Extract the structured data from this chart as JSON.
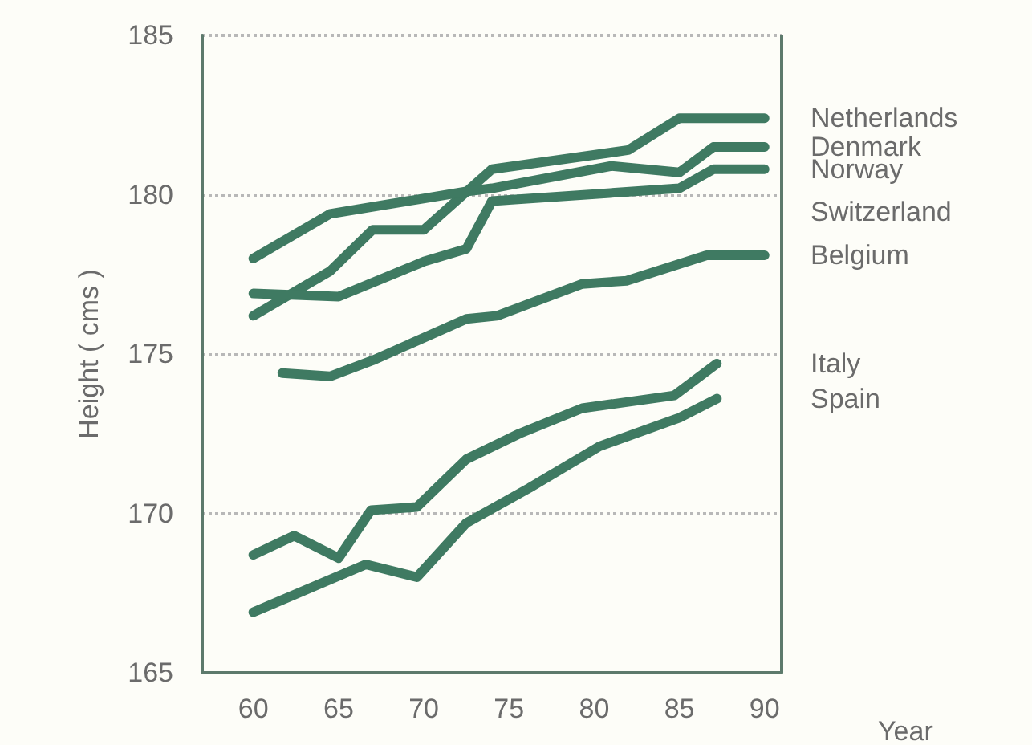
{
  "chart_data": {
    "type": "line",
    "xlabel": "Year",
    "ylabel": "Height ( cms )",
    "xlim": [
      57,
      91
    ],
    "ylim": [
      165,
      185
    ],
    "xticks": [
      60,
      65,
      70,
      75,
      80,
      85,
      90
    ],
    "yticks": [
      165,
      170,
      175,
      180,
      185
    ],
    "grid": "y",
    "line_style": "solid",
    "marker": "none",
    "annotations": [
      "Switzerland"
    ],
    "series": [
      {
        "name": "Netherlands",
        "color": "#3f7a62",
        "x": [
          60,
          64.5,
          67,
          70,
          74,
          82,
          85,
          90
        ],
        "values": [
          176.2,
          177.6,
          178.9,
          178.9,
          180.8,
          181.4,
          182.4,
          182.4
        ]
      },
      {
        "name": "Denmark",
        "color": "#3f7a62",
        "x": [
          60,
          64.5,
          72.5,
          74,
          81,
          85,
          87,
          90
        ],
        "values": [
          178.0,
          179.4,
          180.1,
          180.2,
          180.9,
          180.7,
          181.5,
          181.5
        ]
      },
      {
        "name": "Norway",
        "color": "#3f7a62",
        "x": [
          60,
          65,
          70,
          72.5,
          74,
          85,
          87,
          90
        ],
        "values": [
          176.9,
          176.8,
          177.9,
          178.3,
          179.8,
          180.2,
          180.8,
          180.8
        ]
      },
      {
        "name": "Belgium",
        "color": "#3f7a62",
        "x": [
          61.7,
          64.5,
          67,
          72.5,
          74.3,
          79.3,
          81.9,
          86.6,
          90
        ],
        "values": [
          174.4,
          174.3,
          174.8,
          176.1,
          176.2,
          177.2,
          177.3,
          178.1,
          178.1
        ]
      },
      {
        "name": "Italy",
        "color": "#3f7a62",
        "x": [
          60,
          62.4,
          65,
          66.9,
          69.6,
          72.5,
          75.6,
          79.3,
          84.7,
          87.2
        ],
        "values": [
          168.7,
          169.3,
          168.6,
          170.1,
          170.2,
          171.7,
          172.5,
          173.3,
          173.7,
          174.7
        ]
      },
      {
        "name": "Spain",
        "color": "#3f7a62",
        "x": [
          60,
          66.6,
          69.6,
          72.5,
          76.2,
          80.3,
          85,
          87.2
        ],
        "values": [
          166.9,
          168.4,
          168.0,
          169.7,
          170.8,
          172.1,
          173.0,
          173.6
        ]
      }
    ]
  }
}
